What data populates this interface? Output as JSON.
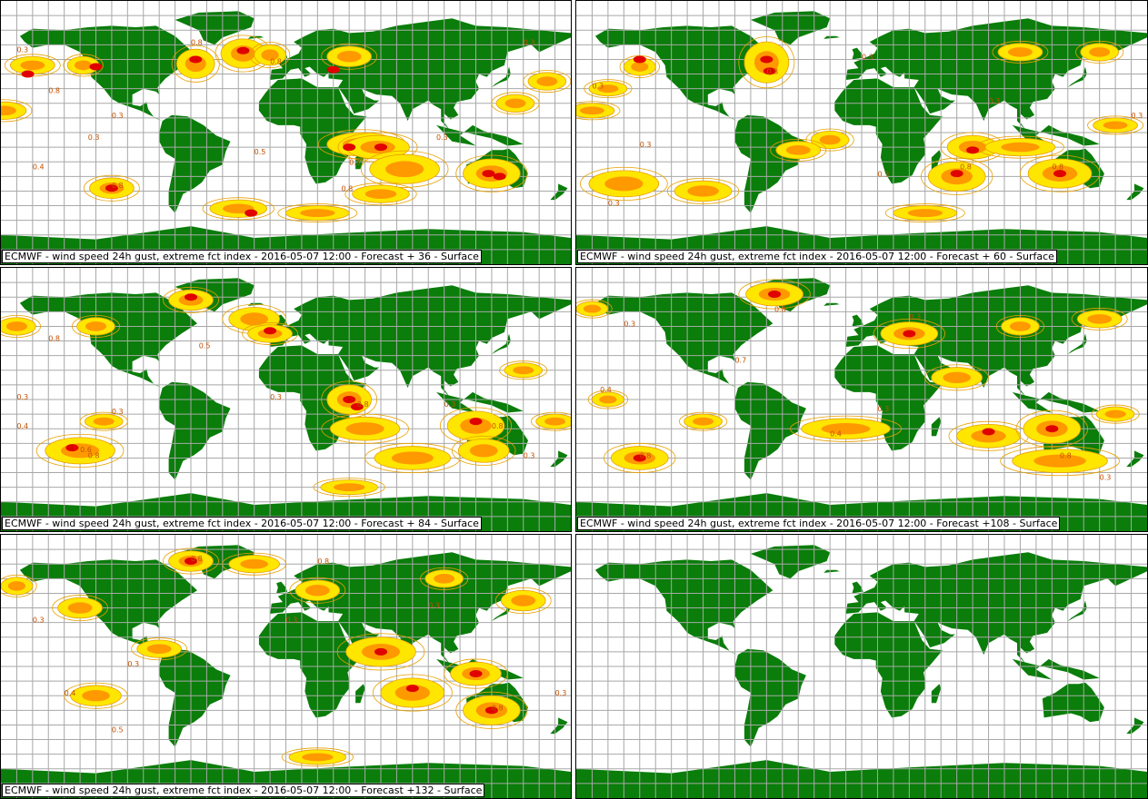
{
  "colors": {
    "land": "#0a7d0a",
    "grid": "#a8a8a8",
    "contour": "#e8a000",
    "low": "#ffe600",
    "mid": "#ff9900",
    "high": "#e00000"
  },
  "panels": [
    {
      "caption": "ECMWF - wind speed 24h gust, extreme fct index - 2016-05-07 12:00 - Forecast + 36 - Surface",
      "blobs": [
        [
          -178,
          15,
          14,
          6
        ],
        [
          -160,
          46,
          14,
          6
        ],
        [
          -128,
          46,
          10,
          6
        ],
        [
          -110,
          -38,
          14,
          7
        ],
        [
          -57,
          47,
          12,
          10
        ],
        [
          -27,
          54,
          14,
          10
        ],
        [
          -10,
          53,
          10,
          7
        ],
        [
          40,
          52,
          14,
          7
        ],
        [
          48,
          -8,
          22,
          8
        ],
        [
          58,
          -10,
          20,
          8
        ],
        [
          75,
          -25,
          22,
          10
        ],
        [
          130,
          -28,
          18,
          10
        ],
        [
          145,
          20,
          12,
          6
        ],
        [
          165,
          35,
          12,
          6
        ],
        [
          -30,
          -52,
          18,
          6
        ],
        [
          20,
          -55,
          20,
          5
        ],
        [
          60,
          -42,
          18,
          6
        ]
      ],
      "highs": [
        [
          -163,
          40
        ],
        [
          -120,
          45
        ],
        [
          -110,
          -38
        ],
        [
          -57,
          50
        ],
        [
          -27,
          56
        ],
        [
          30,
          43
        ],
        [
          40,
          -10
        ],
        [
          60,
          -10
        ],
        [
          128,
          -28
        ],
        [
          135,
          -30
        ],
        [
          -22,
          -55
        ]
      ],
      "labels": [
        [
          "0.8",
          -150,
          27
        ],
        [
          "0.3",
          -170,
          55
        ],
        [
          "0.8",
          -110,
          -38
        ],
        [
          "0.8",
          -60,
          60
        ],
        [
          "0.3",
          -110,
          10
        ],
        [
          "0.3",
          -125,
          -5
        ],
        [
          "0.8",
          -10,
          47
        ],
        [
          "0.3",
          40,
          -22
        ],
        [
          "0.8",
          35,
          -40
        ],
        [
          "0.3",
          95,
          -5
        ],
        [
          "0.3",
          150,
          60
        ],
        [
          "0.5",
          -20,
          -15
        ],
        [
          "0.4",
          -160,
          -25
        ]
      ]
    },
    {
      "caption": "ECMWF - wind speed 24h gust, extreme fct index - 2016-05-07 12:00 - Forecast + 60 - Surface",
      "blobs": [
        [
          -170,
          15,
          14,
          5
        ],
        [
          -160,
          30,
          12,
          5
        ],
        [
          -140,
          45,
          10,
          6
        ],
        [
          -150,
          -35,
          22,
          9
        ],
        [
          -100,
          -40,
          18,
          7
        ],
        [
          -60,
          48,
          14,
          14
        ],
        [
          -20,
          -5,
          12,
          6
        ],
        [
          -40,
          -12,
          14,
          6
        ],
        [
          60,
          -30,
          18,
          10
        ],
        [
          70,
          -10,
          16,
          8
        ],
        [
          100,
          -10,
          22,
          6
        ],
        [
          125,
          -28,
          20,
          10
        ],
        [
          160,
          5,
          14,
          5
        ],
        [
          40,
          -55,
          20,
          5
        ],
        [
          150,
          55,
          12,
          6
        ],
        [
          100,
          55,
          14,
          6
        ]
      ],
      "highs": [
        [
          -60,
          50
        ],
        [
          -58,
          42
        ],
        [
          60,
          -28
        ],
        [
          70,
          -12
        ],
        [
          125,
          -28
        ],
        [
          -140,
          50
        ]
      ],
      "labels": [
        [
          "0.3",
          -170,
          30
        ],
        [
          "0.8",
          -60,
          40
        ],
        [
          "0.3",
          -140,
          -10
        ],
        [
          "0.8",
          62,
          -25
        ],
        [
          "0.3",
          10,
          -30
        ],
        [
          "0.3",
          80,
          20
        ],
        [
          "0.3",
          -160,
          -50
        ],
        [
          "0.8",
          120,
          -25
        ],
        [
          "0.3",
          170,
          10
        ],
        [
          "0.3",
          0,
          50
        ]
      ]
    },
    {
      "caption": "ECMWF - wind speed 24h gust, extreme fct index - 2016-05-07 12:00 - Forecast + 84 - Surface",
      "blobs": [
        [
          -170,
          50,
          12,
          6
        ],
        [
          -130,
          -35,
          22,
          9
        ],
        [
          -115,
          -15,
          12,
          5
        ],
        [
          -60,
          68,
          14,
          7
        ],
        [
          -20,
          55,
          16,
          8
        ],
        [
          -10,
          45,
          14,
          6
        ],
        [
          40,
          0,
          14,
          10
        ],
        [
          50,
          -20,
          22,
          8
        ],
        [
          80,
          -40,
          24,
          8
        ],
        [
          120,
          -18,
          18,
          10
        ],
        [
          125,
          -35,
          16,
          8
        ],
        [
          150,
          20,
          12,
          5
        ],
        [
          170,
          -15,
          12,
          5
        ],
        [
          40,
          -60,
          18,
          5
        ],
        [
          -120,
          50,
          12,
          6
        ]
      ],
      "highs": [
        [
          -60,
          70
        ],
        [
          -10,
          47
        ],
        [
          40,
          0
        ],
        [
          45,
          -5
        ],
        [
          120,
          -15
        ],
        [
          -135,
          -33
        ]
      ],
      "labels": [
        [
          "0.8",
          -150,
          40
        ],
        [
          "0.6",
          -130,
          -36
        ],
        [
          "0.8",
          -125,
          -40
        ],
        [
          "0.3",
          -170,
          0
        ],
        [
          "0.3",
          -110,
          -10
        ],
        [
          "0.5",
          -55,
          35
        ],
        [
          "0.3",
          -10,
          0
        ],
        [
          "0.8",
          45,
          -5
        ],
        [
          "0.3",
          100,
          -5
        ],
        [
          "0.8",
          130,
          -20
        ],
        [
          "0.3",
          150,
          -40
        ],
        [
          "0.4",
          -170,
          -20
        ]
      ]
    },
    {
      "caption": "ECMWF - wind speed 24h gust, extreme fct index - 2016-05-07 12:00 - Forecast +108 - Surface",
      "blobs": [
        [
          -170,
          62,
          10,
          5
        ],
        [
          -140,
          -40,
          18,
          8
        ],
        [
          -100,
          -15,
          12,
          5
        ],
        [
          -55,
          72,
          18,
          8
        ],
        [
          30,
          45,
          18,
          8
        ],
        [
          60,
          15,
          16,
          7
        ],
        [
          -10,
          -20,
          28,
          7
        ],
        [
          80,
          -25,
          20,
          8
        ],
        [
          120,
          -20,
          18,
          10
        ],
        [
          125,
          -42,
          30,
          8
        ],
        [
          160,
          -10,
          12,
          5
        ],
        [
          -160,
          0,
          10,
          5
        ],
        [
          100,
          50,
          12,
          6
        ],
        [
          150,
          55,
          14,
          6
        ]
      ],
      "highs": [
        [
          -55,
          72
        ],
        [
          30,
          45
        ],
        [
          120,
          -20
        ],
        [
          80,
          -22
        ],
        [
          -140,
          -40
        ]
      ],
      "labels": [
        [
          "0.8",
          -140,
          -40
        ],
        [
          "0.4",
          -165,
          5
        ],
        [
          "0.3",
          -150,
          50
        ],
        [
          "0.8",
          -55,
          60
        ],
        [
          "0.3",
          10,
          -8
        ],
        [
          "0.4",
          -20,
          -25
        ],
        [
          "0.8",
          125,
          -40
        ],
        [
          "0.3",
          150,
          -55
        ],
        [
          "0.3",
          30,
          55
        ],
        [
          "0.7",
          -80,
          25
        ]
      ]
    },
    {
      "caption": "ECMWF - wind speed 24h gust, extreme fct index - 2016-05-07 12:00 - Forecast +132 - Surface",
      "blobs": [
        [
          -170,
          55,
          10,
          6
        ],
        [
          -130,
          40,
          14,
          7
        ],
        [
          -120,
          -20,
          16,
          7
        ],
        [
          -80,
          12,
          14,
          6
        ],
        [
          -60,
          72,
          14,
          7
        ],
        [
          -20,
          70,
          16,
          6
        ],
        [
          20,
          52,
          14,
          7
        ],
        [
          60,
          10,
          22,
          10
        ],
        [
          80,
          -18,
          20,
          10
        ],
        [
          120,
          -5,
          16,
          8
        ],
        [
          130,
          -30,
          18,
          10
        ],
        [
          150,
          45,
          14,
          7
        ],
        [
          100,
          60,
          12,
          6
        ],
        [
          20,
          -62,
          18,
          5
        ]
      ],
      "highs": [
        [
          130,
          -30
        ],
        [
          80,
          -15
        ],
        [
          120,
          -5
        ],
        [
          -60,
          72
        ],
        [
          60,
          10
        ]
      ],
      "labels": [
        [
          "0.8",
          -60,
          72
        ],
        [
          "0.3",
          -160,
          30
        ],
        [
          "0.4",
          -140,
          -20
        ],
        [
          "0.3",
          -100,
          0
        ],
        [
          "0.8",
          20,
          70
        ],
        [
          "0.3",
          0,
          30
        ],
        [
          "0.8",
          130,
          -30
        ],
        [
          "0.3",
          170,
          -20
        ],
        [
          "0.3",
          90,
          40
        ],
        [
          "0.5",
          -110,
          -45
        ]
      ]
    },
    {
      "caption": "",
      "blobs": [],
      "highs": [],
      "labels": []
    }
  ]
}
